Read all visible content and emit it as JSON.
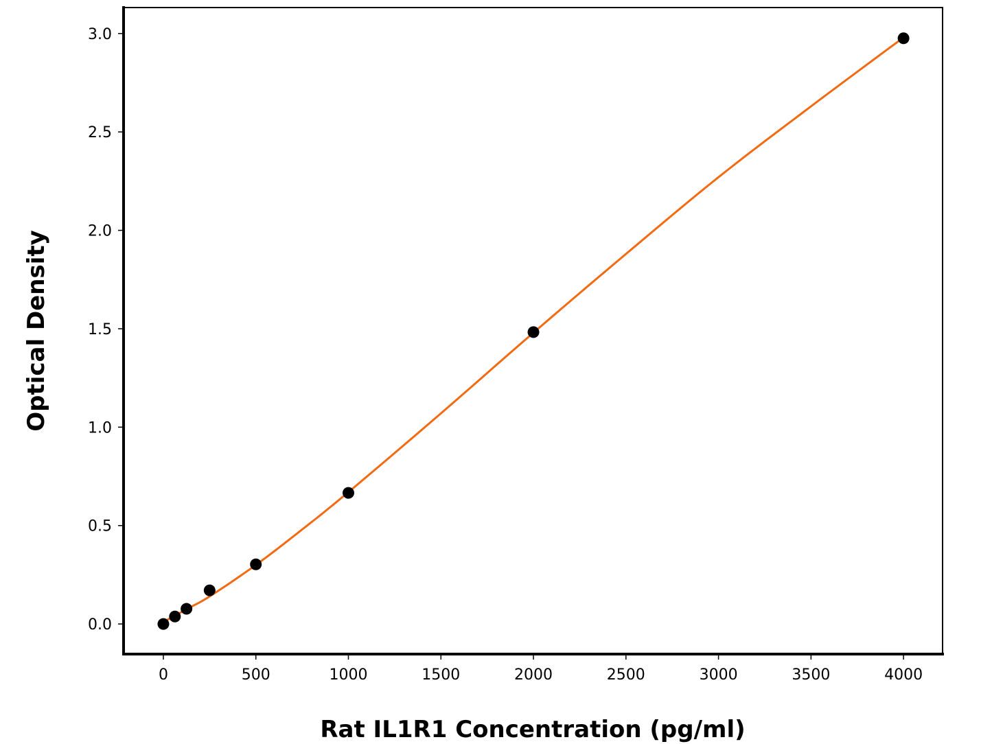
{
  "chart_data": {
    "type": "scatter",
    "title": "",
    "xlabel": "Rat IL1R1 Concentration (pg/ml)",
    "ylabel": "Optical Density",
    "xlim": [
      -215,
      4211
    ],
    "ylim": [
      -0.153,
      3.132
    ],
    "xticks": [
      0,
      500,
      1000,
      1500,
      2000,
      2500,
      3000,
      3500,
      4000
    ],
    "xtick_labels": [
      "0",
      "500",
      "1000",
      "1500",
      "2000",
      "2500",
      "3000",
      "3500",
      "4000"
    ],
    "yticks": [
      0.0,
      0.5,
      1.0,
      1.5,
      2.0,
      2.5,
      3.0
    ],
    "ytick_labels": [
      "0.0",
      "0.5",
      "1.0",
      "1.5",
      "2.0",
      "2.5",
      "3.0"
    ],
    "grid": false,
    "points": {
      "x": [
        0,
        62.5,
        125,
        250,
        500,
        1000,
        2000,
        4000
      ],
      "y": [
        0.0,
        0.038,
        0.077,
        0.171,
        0.303,
        0.666,
        1.483,
        2.976
      ],
      "color": "#000000"
    },
    "fit_curve": {
      "x": [
        0,
        125,
        250,
        500,
        750,
        1000,
        1500,
        2000,
        2500,
        3000,
        3500,
        4000
      ],
      "y": [
        0.01,
        0.075,
        0.14,
        0.3,
        0.48,
        0.67,
        1.07,
        1.48,
        1.88,
        2.27,
        2.63,
        2.98
      ],
      "color": "#f26a11"
    }
  }
}
